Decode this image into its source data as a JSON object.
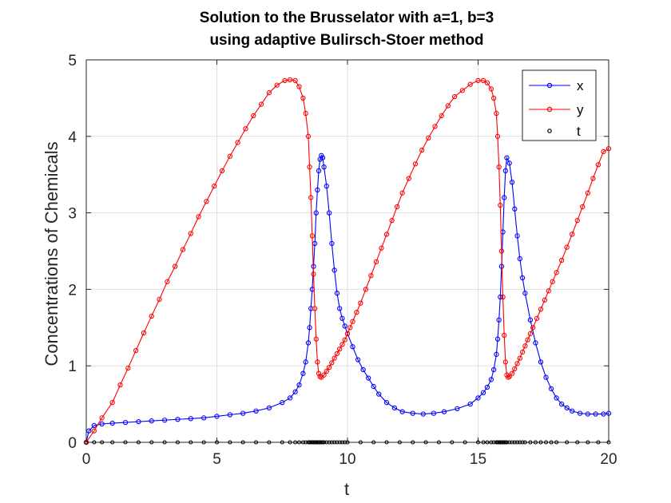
{
  "chart_data": {
    "type": "line",
    "title": [
      "Solution to the Brusselator with a=1, b=3",
      "using adaptive Bulirsch-Stoer method"
    ],
    "xlabel": "t",
    "ylabel": "Concentrations of Chemicals",
    "xlim": [
      0,
      20
    ],
    "ylim": [
      0,
      5
    ],
    "xticks": [
      0,
      5,
      10,
      15,
      20
    ],
    "yticks": [
      0,
      1,
      2,
      3,
      4,
      5
    ],
    "grid": true,
    "legend_position": "top-right",
    "series": [
      {
        "name": "x",
        "color": "#0000ff",
        "marker": "circle",
        "line": true,
        "x": [
          0,
          0.1,
          0.3,
          0.6,
          1,
          1.5,
          2,
          2.5,
          3,
          3.5,
          4,
          4.5,
          5,
          5.5,
          6,
          6.5,
          7,
          7.5,
          7.8,
          8,
          8.15,
          8.3,
          8.4,
          8.5,
          8.55,
          8.6,
          8.65,
          8.7,
          8.75,
          8.8,
          8.85,
          8.9,
          8.95,
          9.0,
          9.05,
          9.1,
          9.2,
          9.3,
          9.4,
          9.5,
          9.6,
          9.7,
          9.8,
          9.9,
          10.0,
          10.2,
          10.4,
          10.6,
          10.8,
          11,
          11.2,
          11.5,
          11.8,
          12.1,
          12.5,
          12.9,
          13.3,
          13.7,
          14.2,
          14.7,
          15,
          15.2,
          15.35,
          15.5,
          15.6,
          15.7,
          15.75,
          15.8,
          15.85,
          15.9,
          15.95,
          16.0,
          16.05,
          16.1,
          16.2,
          16.3,
          16.4,
          16.5,
          16.6,
          16.7,
          16.8,
          17.0,
          17.2,
          17.4,
          17.6,
          17.8,
          18.0,
          18.2,
          18.4,
          18.6,
          18.9,
          19.2,
          19.5,
          19.8,
          20
        ],
        "values": [
          0,
          0.15,
          0.22,
          0.24,
          0.25,
          0.26,
          0.27,
          0.28,
          0.29,
          0.3,
          0.31,
          0.32,
          0.34,
          0.36,
          0.38,
          0.41,
          0.45,
          0.52,
          0.58,
          0.66,
          0.75,
          0.9,
          1.05,
          1.3,
          1.5,
          1.75,
          2.0,
          2.3,
          2.6,
          3.0,
          3.3,
          3.55,
          3.7,
          3.75,
          3.72,
          3.6,
          3.35,
          3.0,
          2.6,
          2.25,
          1.95,
          1.75,
          1.62,
          1.52,
          1.42,
          1.25,
          1.08,
          0.95,
          0.84,
          0.73,
          0.63,
          0.52,
          0.45,
          0.4,
          0.38,
          0.37,
          0.38,
          0.4,
          0.44,
          0.5,
          0.58,
          0.65,
          0.72,
          0.82,
          0.95,
          1.15,
          1.35,
          1.6,
          1.9,
          2.3,
          2.75,
          3.2,
          3.55,
          3.72,
          3.65,
          3.4,
          3.05,
          2.7,
          2.4,
          2.15,
          1.95,
          1.6,
          1.3,
          1.05,
          0.85,
          0.7,
          0.58,
          0.5,
          0.45,
          0.41,
          0.38,
          0.37,
          0.37,
          0.37,
          0.38
        ]
      },
      {
        "name": "y",
        "color": "#ff0000",
        "marker": "circle",
        "line": true,
        "x": [
          0,
          0.3,
          0.6,
          1,
          1.3,
          1.6,
          1.9,
          2.2,
          2.5,
          2.8,
          3.1,
          3.4,
          3.7,
          4,
          4.3,
          4.6,
          4.9,
          5.2,
          5.5,
          5.8,
          6.1,
          6.4,
          6.7,
          7.0,
          7.3,
          7.6,
          7.8,
          8.0,
          8.15,
          8.3,
          8.4,
          8.5,
          8.55,
          8.6,
          8.65,
          8.7,
          8.75,
          8.8,
          8.85,
          8.9,
          8.95,
          9.0,
          9.1,
          9.2,
          9.3,
          9.4,
          9.5,
          9.6,
          9.7,
          9.8,
          9.9,
          10.0,
          10.1,
          10.2,
          10.35,
          10.5,
          10.7,
          10.9,
          11.1,
          11.3,
          11.5,
          11.7,
          11.9,
          12.1,
          12.35,
          12.6,
          12.85,
          13.1,
          13.35,
          13.6,
          13.85,
          14.1,
          14.4,
          14.7,
          15.0,
          15.2,
          15.35,
          15.5,
          15.6,
          15.7,
          15.75,
          15.8,
          15.85,
          15.9,
          15.95,
          16.0,
          16.05,
          16.1,
          16.15,
          16.2,
          16.3,
          16.4,
          16.5,
          16.6,
          16.7,
          16.8,
          16.9,
          17.0,
          17.1,
          17.25,
          17.4,
          17.55,
          17.7,
          17.85,
          18.0,
          18.2,
          18.4,
          18.6,
          18.8,
          19.0,
          19.2,
          19.4,
          19.6,
          19.8,
          20
        ],
        "values": [
          0,
          0.15,
          0.32,
          0.52,
          0.75,
          0.97,
          1.2,
          1.43,
          1.65,
          1.87,
          2.1,
          2.3,
          2.52,
          2.73,
          2.95,
          3.15,
          3.35,
          3.55,
          3.74,
          3.92,
          4.1,
          4.27,
          4.42,
          4.57,
          4.67,
          4.73,
          4.74,
          4.73,
          4.65,
          4.5,
          4.3,
          4.0,
          3.6,
          3.2,
          2.7,
          2.2,
          1.75,
          1.35,
          1.05,
          0.9,
          0.86,
          0.85,
          0.88,
          0.93,
          0.98,
          1.04,
          1.1,
          1.16,
          1.22,
          1.28,
          1.34,
          1.42,
          1.5,
          1.58,
          1.7,
          1.82,
          2.0,
          2.18,
          2.36,
          2.54,
          2.72,
          2.9,
          3.08,
          3.26,
          3.45,
          3.64,
          3.82,
          3.98,
          4.13,
          4.27,
          4.4,
          4.52,
          4.6,
          4.68,
          4.73,
          4.73,
          4.7,
          4.62,
          4.5,
          4.3,
          4.0,
          3.6,
          3.1,
          2.5,
          1.9,
          1.4,
          1.05,
          0.88,
          0.85,
          0.86,
          0.9,
          0.96,
          1.03,
          1.1,
          1.18,
          1.26,
          1.34,
          1.42,
          1.5,
          1.62,
          1.74,
          1.86,
          1.98,
          2.1,
          2.22,
          2.38,
          2.55,
          2.72,
          2.9,
          3.08,
          3.26,
          3.45,
          3.63,
          3.8,
          3.84
        ]
      },
      {
        "name": "t",
        "color": "#000000",
        "marker": "circle",
        "line": false,
        "x": [
          0,
          0.3,
          0.6,
          1,
          1.5,
          2,
          2.5,
          3,
          3.5,
          4,
          4.5,
          5,
          5.5,
          6,
          6.5,
          7,
          7.5,
          7.8,
          8,
          8.15,
          8.3,
          8.4,
          8.5,
          8.55,
          8.6,
          8.65,
          8.7,
          8.75,
          8.8,
          8.85,
          8.9,
          8.95,
          9.0,
          9.05,
          9.1,
          9.2,
          9.3,
          9.4,
          9.5,
          9.6,
          9.7,
          9.8,
          9.9,
          10.0,
          10.5,
          11,
          11.5,
          12,
          12.5,
          13,
          13.5,
          14,
          14.5,
          15,
          15.2,
          15.35,
          15.5,
          15.6,
          15.7,
          15.75,
          15.8,
          15.85,
          15.9,
          15.95,
          16.0,
          16.05,
          16.1,
          16.2,
          16.3,
          16.4,
          16.5,
          16.6,
          16.7,
          16.8,
          17.0,
          17.2,
          17.4,
          17.6,
          17.8,
          18.0,
          18.4,
          18.8,
          19.2,
          19.6,
          20
        ],
        "values_constant": 0
      }
    ]
  }
}
